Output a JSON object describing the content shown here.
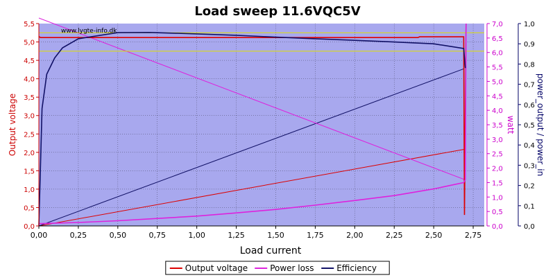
{
  "chart_data": {
    "type": "line",
    "title": "Load sweep 11.6VQC5V",
    "watermark": "www.lygte-info.dk",
    "xlabel": "Load current",
    "y_left_label": "Output voltage",
    "y_right1_label": "watt",
    "y_right2_label": "power_output / power_in",
    "xlim": [
      0,
      2.82
    ],
    "ylim_left": [
      0,
      5.5
    ],
    "ylim_right1": [
      0,
      7.0
    ],
    "ylim_right2": [
      0,
      1.0
    ],
    "x_ticks": [
      "0,00",
      "0,25",
      "0,50",
      "0,75",
      "1,00",
      "1,25",
      "1,50",
      "1,75",
      "2,00",
      "2,25",
      "2,50",
      "2,75"
    ],
    "y_left_ticks": [
      "0,0",
      "0,5",
      "1,0",
      "1,5",
      "2,0",
      "2,5",
      "3,0",
      "3,5",
      "4,0",
      "4,5",
      "5,0",
      "5,5"
    ],
    "y_right1_ticks": [
      "0,0",
      "0,5",
      "1,0",
      "1,5",
      "2,0",
      "2,5",
      "3,0",
      "3,5",
      "4,0",
      "4,5",
      "5,0",
      "5,5",
      "6,0",
      "6,5",
      "7,0"
    ],
    "y_right2_ticks": [
      "0,0",
      "0,1",
      "0,2",
      "0,3",
      "0,4",
      "0,5",
      "0,6",
      "0,7",
      "0,8",
      "0,9",
      "1,0"
    ],
    "reference_lines_left": [
      5.25,
      4.75
    ],
    "colors": {
      "plot_bg": "#a8a8ee",
      "voltage": "#dd0000",
      "power": "#dd22dd",
      "efficiency": "#111166",
      "reference": "#dddd00",
      "axis_left": "#cc0000",
      "axis_right1": "#cc00cc",
      "axis_right2": "#000066"
    },
    "series": [
      {
        "name": "Output voltage",
        "axis": "left",
        "x": [
          0.0,
          0.01,
          0.1,
          0.5,
          1.0,
          1.5,
          2.0,
          2.4,
          2.41,
          2.69,
          2.695,
          2.705
        ],
        "values": [
          5.15,
          5.12,
          5.12,
          5.12,
          5.12,
          5.12,
          5.12,
          5.12,
          5.14,
          5.14,
          0.3,
          5.5
        ]
      },
      {
        "name": "Power loss",
        "axis": "right1",
        "x": [
          0.0,
          0.25,
          0.5,
          0.75,
          1.0,
          1.25,
          1.5,
          1.75,
          2.0,
          2.25,
          2.5,
          2.69,
          2.7,
          2.705
        ],
        "values": [
          0.08,
          0.12,
          0.18,
          0.26,
          0.34,
          0.45,
          0.57,
          0.72,
          0.88,
          1.05,
          1.28,
          1.5,
          1.6,
          7.0
        ]
      },
      {
        "name": "Efficiency",
        "axis": "right2",
        "x": [
          0.0,
          0.02,
          0.05,
          0.1,
          0.15,
          0.25,
          0.5,
          0.7,
          1.0,
          1.25,
          1.5,
          1.75,
          2.0,
          2.25,
          2.5,
          2.69,
          2.7
        ],
        "values": [
          0.0,
          0.58,
          0.75,
          0.83,
          0.88,
          0.925,
          0.955,
          0.956,
          0.949,
          0.942,
          0.933,
          0.925,
          0.917,
          0.909,
          0.9,
          0.877,
          0.78
        ]
      }
    ],
    "bg_lines": [
      {
        "axis": "left",
        "color": "#dd0000",
        "x": [
          0.0,
          2.69
        ],
        "values": [
          0.0,
          2.08
        ]
      },
      {
        "axis": "left",
        "color": "#111166",
        "x": [
          0.0,
          2.69
        ],
        "values": [
          0.0,
          4.27
        ]
      },
      {
        "axis": "left",
        "color": "#dd22dd",
        "x": [
          0.0,
          2.69
        ],
        "values": [
          5.65,
          1.27
        ]
      }
    ],
    "legend": {
      "position": "bottom-center",
      "items": [
        {
          "label": "Output voltage",
          "color": "#dd0000"
        },
        {
          "label": "Power loss",
          "color": "#dd22dd"
        },
        {
          "label": "Efficiency",
          "color": "#111166"
        }
      ]
    },
    "grid": true
  }
}
